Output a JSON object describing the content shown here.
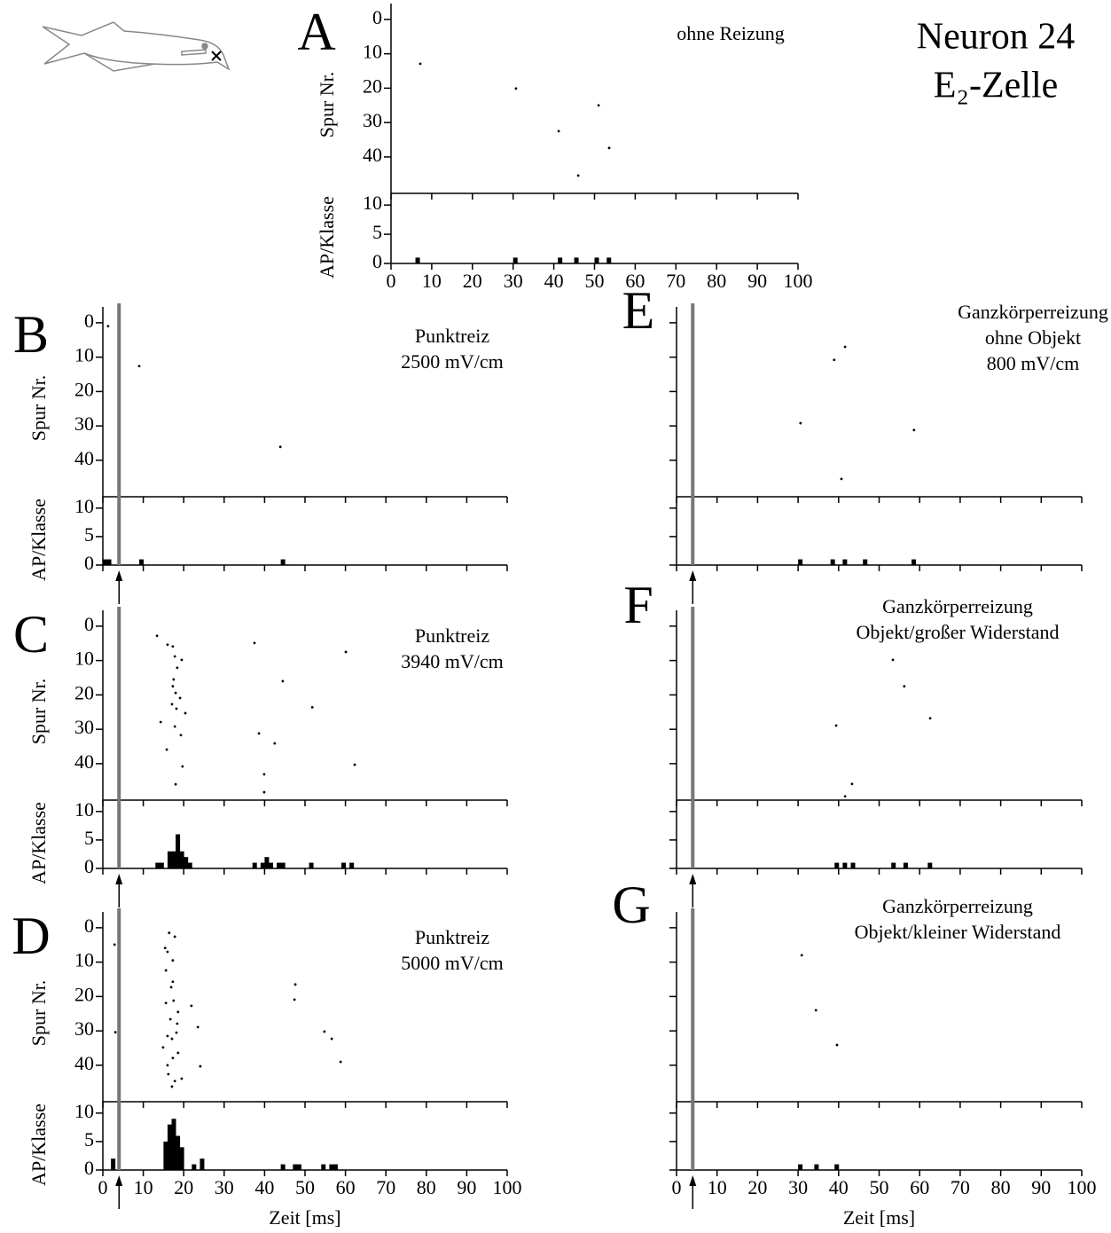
{
  "figure": {
    "title": [
      "Neuron 24",
      "E₂-Zelle"
    ]
  },
  "chart_data": [
    {
      "type": "raster",
      "label": "A",
      "annotation": [
        "ohne Reizung"
      ],
      "xlim": [
        0,
        100
      ],
      "xticks": [
        0,
        10,
        20,
        30,
        40,
        50,
        60,
        70,
        80,
        90,
        100
      ],
      "xtick_labels": true,
      "raster": {
        "x": [
          7.2,
          30.7,
          41.2,
          51,
          53.6,
          46
        ],
        "y": [
          12.9,
          20.1,
          32.5,
          25,
          37.4,
          45.4
        ],
        "ylim": [
          -1,
          50.6
        ],
        "y_inverted": true,
        "yticks": [
          0,
          10,
          20,
          30,
          40
        ],
        "ylabel": "Spur Nr.",
        "ytick_labels": true
      },
      "histogram": {
        "x": [
          6,
          30,
          41,
          45,
          50,
          53
        ],
        "values": [
          1,
          1,
          1,
          1,
          1,
          1
        ],
        "ylim": [
          0,
          12
        ],
        "yticks": [
          0,
          5,
          10
        ],
        "ylabel": "AP/Klasse",
        "ytick_labels": true
      }
    },
    {
      "type": "raster",
      "label": "B",
      "annotation": [
        "Punktreiz",
        "2500 mV/cm"
      ],
      "xlim": [
        0,
        100
      ],
      "xticks": [
        0,
        10,
        20,
        30,
        40,
        50,
        60,
        70,
        80,
        90,
        100
      ],
      "xtick_labels": false,
      "stimulus": 4,
      "raster": {
        "x": [
          1.3,
          9,
          43.9
        ],
        "y": [
          1,
          12.6,
          36.1
        ],
        "ylim": [
          -1,
          50.6
        ],
        "y_inverted": true,
        "yticks": [
          0,
          10,
          20,
          30,
          40
        ],
        "ylabel": "Spur Nr.",
        "ytick_labels": true
      },
      "histogram": {
        "x": [
          0,
          1,
          9,
          44
        ],
        "values": [
          1,
          1,
          1,
          1
        ],
        "ylim": [
          0,
          12
        ],
        "yticks": [
          0,
          5,
          10
        ],
        "ylabel": "AP/Klasse",
        "ytick_labels": true
      }
    },
    {
      "type": "raster",
      "label": "C",
      "annotation": [
        "Punktreiz",
        "3940 mV/cm"
      ],
      "xlim": [
        0,
        100
      ],
      "xticks": [
        0,
        10,
        20,
        30,
        40,
        50,
        60,
        70,
        80,
        90,
        100
      ],
      "xtick_labels": false,
      "stimulus": 4,
      "raster": {
        "x": [
          13.4,
          16,
          17.3,
          17.8,
          19.5,
          18.4,
          17.5,
          17.3,
          18,
          19.1,
          17.1,
          18.2,
          20.4,
          14.3,
          17.8,
          19.3,
          15.8,
          19.7,
          18,
          37.5,
          44.5,
          38.6,
          42.5,
          51.8,
          60.1,
          62.3,
          39.9,
          39.9
        ],
        "y": [
          2.8,
          5.4,
          5.9,
          8.8,
          9.8,
          12.1,
          15.5,
          17.5,
          19.4,
          20.9,
          22.7,
          24,
          25.3,
          27.9,
          29.2,
          31.7,
          35.9,
          40.8,
          46,
          4.9,
          16,
          31.2,
          34.1,
          23.6,
          7.5,
          40.3,
          43.1,
          48.3
        ],
        "ylim": [
          -1,
          50.6
        ],
        "y_inverted": true,
        "yticks": [
          0,
          10,
          20,
          30,
          40
        ],
        "ylabel": "Spur Nr.",
        "ytick_labels": true
      },
      "histogram": {
        "x": [
          13,
          14,
          16,
          17,
          18,
          19,
          20,
          21,
          37,
          39,
          40,
          41,
          43,
          44,
          51,
          59,
          61
        ],
        "values": [
          1,
          1,
          3,
          3,
          6,
          3,
          2,
          1,
          1,
          1,
          2,
          1,
          1,
          1,
          1,
          1,
          1
        ],
        "ylim": [
          0,
          12
        ],
        "yticks": [
          0,
          5,
          10
        ],
        "ylabel": "AP/Klasse",
        "ytick_labels": true
      }
    },
    {
      "type": "raster",
      "label": "D",
      "annotation": [
        "Punktreiz",
        "5000 mV/cm"
      ],
      "xlim": [
        0,
        100
      ],
      "xticks": [
        0,
        10,
        20,
        30,
        40,
        50,
        60,
        70,
        80,
        90,
        100
      ],
      "xtick_labels": true,
      "xlabel": "Zeit [ms]",
      "stimulus": 4,
      "raster": {
        "x": [
          2.9,
          3.1,
          16.4,
          17.8,
          15.4,
          16,
          17.3,
          15.6,
          17.3,
          16.9,
          15.6,
          17.5,
          18.6,
          21.9,
          16.7,
          18.4,
          23.5,
          16,
          17.1,
          18.2,
          14.9,
          18.6,
          17.3,
          16,
          24.1,
          16.2,
          17.8,
          19.5,
          17.1,
          47.6,
          47.4,
          54.8,
          56.6,
          58.8
        ],
        "y": [
          4.9,
          30.4,
          1.5,
          2.6,
          5.9,
          7,
          9.5,
          12.4,
          15.7,
          17.3,
          21.9,
          21.2,
          24.5,
          22.7,
          26.6,
          27.9,
          28.9,
          31.5,
          32.3,
          30.5,
          34.8,
          36.4,
          37.9,
          40,
          40.3,
          42.6,
          44.6,
          43.9,
          46.2,
          16.5,
          20.9,
          30.2,
          32.3,
          39
        ],
        "ylim": [
          -1,
          50.6
        ],
        "y_inverted": true,
        "yticks": [
          0,
          10,
          20,
          30,
          40
        ],
        "ylabel": "Spur Nr.",
        "ytick_labels": true
      },
      "histogram": {
        "x": [
          2,
          15,
          16,
          17,
          18,
          19,
          22,
          24,
          44,
          47,
          48,
          54,
          56,
          57
        ],
        "values": [
          2,
          5,
          8,
          9,
          6,
          4,
          1,
          2,
          1,
          1,
          1,
          1,
          1,
          1
        ],
        "ylim": [
          0,
          12
        ],
        "yticks": [
          0,
          5,
          10
        ],
        "ylabel": "AP/Klasse",
        "ytick_labels": true
      }
    },
    {
      "type": "raster",
      "label": "E",
      "annotation": [
        "Ganzkörperreizung",
        "ohne Objekt",
        "800 mV/cm"
      ],
      "xlim": [
        0,
        100
      ],
      "xticks": [
        0,
        10,
        20,
        30,
        40,
        50,
        60,
        70,
        80,
        90,
        100
      ],
      "xtick_labels": false,
      "stimulus": 4,
      "raster": {
        "x": [
          41.6,
          38.9,
          30.6,
          58.6,
          40.7
        ],
        "y": [
          7,
          10.8,
          29.2,
          31.2,
          45.4
        ],
        "ylim": [
          -1,
          50.6
        ],
        "y_inverted": true,
        "yticks": [
          0,
          10,
          20,
          30,
          40
        ],
        "ytick_labels": false
      },
      "histogram": {
        "x": [
          30,
          38,
          41,
          46,
          58
        ],
        "values": [
          1,
          1,
          1,
          1,
          1
        ],
        "ylim": [
          0,
          12
        ],
        "yticks": [
          0,
          5,
          10
        ],
        "ytick_labels": false
      }
    },
    {
      "type": "raster",
      "label": "F",
      "annotation": [
        "Ganzkörperreizung",
        "Objekt/großer Widerstand"
      ],
      "xlim": [
        0,
        100
      ],
      "xticks": [
        0,
        10,
        20,
        30,
        40,
        50,
        60,
        70,
        80,
        90,
        100
      ],
      "xtick_labels": false,
      "stimulus": 4,
      "raster": {
        "x": [
          53.4,
          56.2,
          62.6,
          39.4,
          43.3,
          41.6
        ],
        "y": [
          9.8,
          17.5,
          26.8,
          28.9,
          45.9,
          49.5
        ],
        "ylim": [
          -1,
          50.6
        ],
        "y_inverted": true,
        "yticks": [
          0,
          10,
          20,
          30,
          40
        ],
        "ytick_labels": false
      },
      "histogram": {
        "x": [
          39,
          41,
          43,
          53,
          56,
          62
        ],
        "values": [
          1,
          1,
          1,
          1,
          1,
          1
        ],
        "ylim": [
          0,
          12
        ],
        "yticks": [
          0,
          5,
          10
        ],
        "ytick_labels": false
      }
    },
    {
      "type": "raster",
      "label": "G",
      "annotation": [
        "Ganzkörperreizung",
        "Objekt/kleiner Widerstand"
      ],
      "xlim": [
        0,
        100
      ],
      "xticks": [
        0,
        10,
        20,
        30,
        40,
        50,
        60,
        70,
        80,
        90,
        100
      ],
      "xtick_labels": true,
      "xlabel": "Zeit [ms]",
      "stimulus": 4,
      "raster": {
        "x": [
          30.9,
          34.4,
          39.6
        ],
        "y": [
          8,
          24,
          34.1
        ],
        "ylim": [
          -1,
          50.6
        ],
        "y_inverted": true,
        "yticks": [
          0,
          10,
          20,
          30,
          40
        ],
        "ytick_labels": false
      },
      "histogram": {
        "x": [
          30,
          34,
          39
        ],
        "values": [
          1,
          1,
          1
        ],
        "ylim": [
          0,
          12
        ],
        "yticks": [
          0,
          5,
          10
        ],
        "ytick_labels": false
      }
    }
  ]
}
